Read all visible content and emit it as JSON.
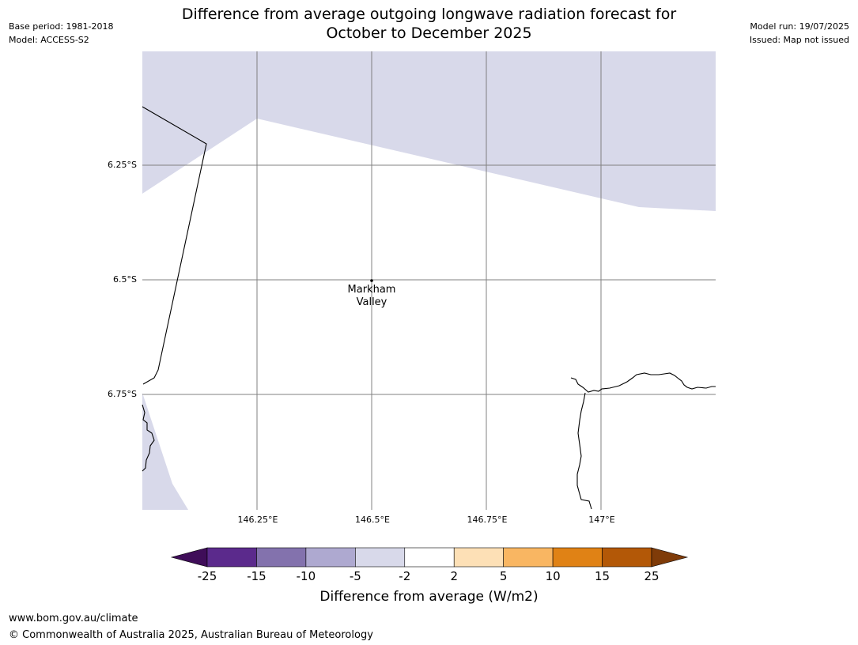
{
  "header": {
    "base_period": "Base period: 1981-2018",
    "model": "Model: ACCESS-S2",
    "title_line1": "Difference from average outgoing longwave radiation forecast for",
    "title_line2": "October to December 2025",
    "model_run": "Model run: 19/07/2025",
    "issued": "Issued: Map not issued"
  },
  "map": {
    "latitude_labels": [
      "6.25°S",
      "6.5°S",
      "6.75°S"
    ],
    "longitude_labels": [
      "146.25°E",
      "146.5°E",
      "146.75°E",
      "147°E"
    ],
    "place_name_line1": "Markham",
    "place_name_line2": "Valley",
    "colors": {
      "below_average_light": "#d8d9ea",
      "neutral": "#ffffff",
      "gridline": "#808080",
      "coastline": "#000000"
    }
  },
  "colorbar": {
    "ticks": [
      "-25",
      "-15",
      "-10",
      "-5",
      "-2",
      "2",
      "5",
      "10",
      "15",
      "25"
    ],
    "colors": [
      "#3f0d59",
      "#5b2a8c",
      "#8372ad",
      "#aea9d0",
      "#d8d9ea",
      "#ffffff",
      "#fde0b6",
      "#f9b662",
      "#e08215",
      "#b35807",
      "#7f3b08"
    ],
    "title": "Difference from average (W/m2)"
  },
  "footer": {
    "url": "www.bom.gov.au/climate",
    "copyright": "© Commonwealth of Australia 2025, Australian Bureau of Meteorology"
  }
}
